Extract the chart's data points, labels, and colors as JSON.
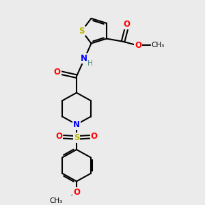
{
  "background_color": "#ebebeb",
  "atom_colors": {
    "S": "#b8b800",
    "N": "#0000ff",
    "O": "#ff0000",
    "C": "#000000",
    "H": "#5a9090"
  },
  "bond_color": "#000000",
  "bond_width": 1.5,
  "figsize": [
    3.0,
    3.0
  ],
  "dpi": 100
}
